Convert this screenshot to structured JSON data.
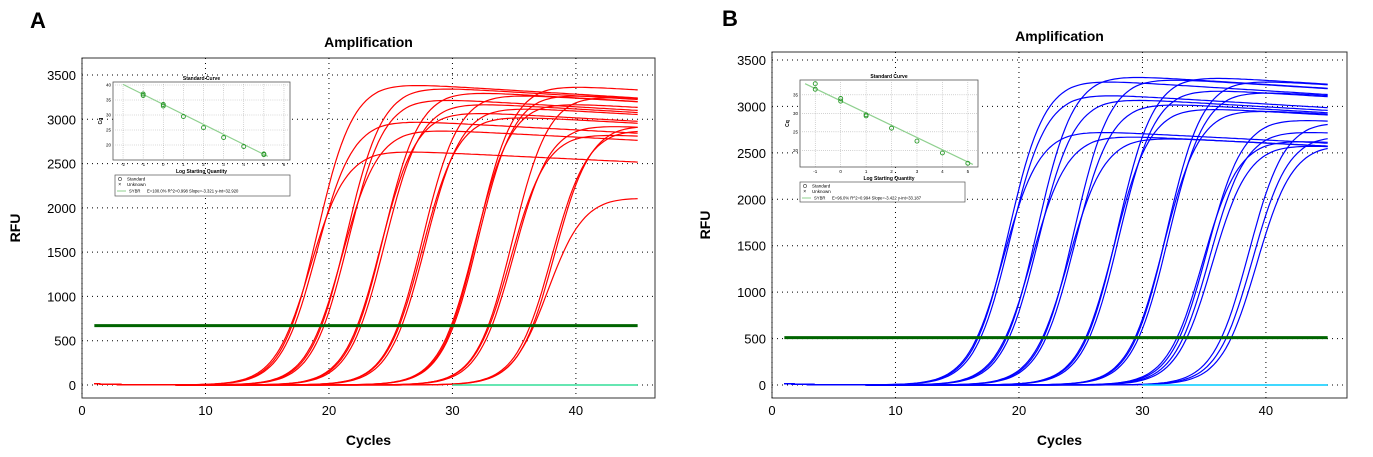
{
  "chart_data": [
    {
      "panel": "A",
      "type": "line",
      "title": "Amplification",
      "xlabel": "Cycles",
      "ylabel": "RFU",
      "xlim": [
        0,
        46
      ],
      "ylim": [
        -100,
        3600
      ],
      "xticks": [
        0,
        10,
        20,
        30,
        40
      ],
      "yticks": [
        0,
        500,
        1000,
        1500,
        2000,
        2500,
        3000,
        3500
      ],
      "grid": "dotted",
      "line_color": "#ff0000",
      "threshold": 670,
      "threshold_color": "#006400",
      "ntc_color": "#33dd99",
      "curves": [
        {
          "cq": 17,
          "plateau": 3420
        },
        {
          "cq": 17.2,
          "plateau": 3000
        },
        {
          "cq": 16.9,
          "plateau": 2660
        },
        {
          "cq": 19.4,
          "plateau": 3380
        },
        {
          "cq": 19.6,
          "plateau": 3250
        },
        {
          "cq": 19.3,
          "plateau": 2900
        },
        {
          "cq": 22.4,
          "plateau": 3330
        },
        {
          "cq": 22.6,
          "plateau": 3200
        },
        {
          "cq": 22.3,
          "plateau": 3100
        },
        {
          "cq": 25.6,
          "plateau": 3300
        },
        {
          "cq": 25.9,
          "plateau": 3150
        },
        {
          "cq": 25.7,
          "plateau": 3050
        },
        {
          "cq": 30,
          "plateau": 3400
        },
        {
          "cq": 30.1,
          "plateau": 3300
        },
        {
          "cq": 29.9,
          "plateau": 3200
        },
        {
          "cq": 32.9,
          "plateau": 3280
        },
        {
          "cq": 33.2,
          "plateau": 2950
        },
        {
          "cq": 33,
          "plateau": 2850
        },
        {
          "cq": 36.5,
          "plateau": 2950
        },
        {
          "cq": 36.3,
          "plateau": 2900
        },
        {
          "cq": 36.6,
          "plateau": 2130
        }
      ],
      "inset": {
        "title": "Standard Curve",
        "xlabel": "Log Starting Quantity",
        "ylabel": "Cq",
        "xlim": [
          -2.5,
          6.3
        ],
        "ylim": [
          15,
          41
        ],
        "xticks": [
          -2,
          -1,
          0,
          1,
          2,
          3,
          4,
          5,
          6
        ],
        "yticks": [
          20,
          25,
          30,
          35,
          40
        ],
        "points": [
          [
            -1,
            36.5
          ],
          [
            -1,
            37
          ],
          [
            0,
            33
          ],
          [
            0,
            33.5
          ],
          [
            1,
            29.5
          ],
          [
            2,
            25.8
          ],
          [
            3,
            22.5
          ],
          [
            4,
            19.5
          ],
          [
            5,
            17
          ],
          [
            5,
            16.8
          ]
        ],
        "fit": [
          [
            -2,
            40.2
          ],
          [
            5.2,
            16.2
          ]
        ],
        "legend": [
          "Standard",
          "Unknown"
        ],
        "fit_label": "SYBR",
        "fit_stats": "E=100.0% R^2=0.998 Slope=-3.321 y-int=32.920"
      }
    },
    {
      "panel": "B",
      "type": "line",
      "title": "Amplification",
      "xlabel": "Cycles",
      "ylabel": "RFU",
      "xlim": [
        0,
        46
      ],
      "ylim": [
        -100,
        3600
      ],
      "xticks": [
        0,
        10,
        20,
        30,
        40
      ],
      "yticks": [
        0,
        500,
        1000,
        1500,
        2000,
        2500,
        3000,
        3500
      ],
      "grid": "dotted",
      "line_color": "#0000ff",
      "threshold": 510,
      "threshold_color": "#006400",
      "ntc_color": "#00ccff",
      "curves": [
        {
          "cq": 16.7,
          "plateau": 3300
        },
        {
          "cq": 16.9,
          "plateau": 3150
        },
        {
          "cq": 16.6,
          "plateau": 2750
        },
        {
          "cq": 19,
          "plateau": 3350
        },
        {
          "cq": 19.2,
          "plateau": 3100
        },
        {
          "cq": 18.9,
          "plateau": 2700
        },
        {
          "cq": 22,
          "plateau": 3320
        },
        {
          "cq": 22.2,
          "plateau": 3050
        },
        {
          "cq": 21.9,
          "plateau": 2680
        },
        {
          "cq": 25.5,
          "plateau": 3340
        },
        {
          "cq": 25.7,
          "plateau": 3200
        },
        {
          "cq": 25.4,
          "plateau": 3000
        },
        {
          "cq": 29.5,
          "plateau": 3300
        },
        {
          "cq": 29.7,
          "plateau": 3180
        },
        {
          "cq": 29.4,
          "plateau": 2980
        },
        {
          "cq": 33,
          "plateau": 2880
        },
        {
          "cq": 33.3,
          "plateau": 2750
        },
        {
          "cq": 32.8,
          "plateau": 2650
        },
        {
          "cq": 33.6,
          "plateau": 2600
        },
        {
          "cq": 36.4,
          "plateau": 2850
        },
        {
          "cq": 36.8,
          "plateau": 2700
        },
        {
          "cq": 37.2,
          "plateau": 2600
        }
      ],
      "inset": {
        "title": "Standard Curve",
        "xlabel": "Log Starting Quantity",
        "ylabel": "Cq",
        "xlim": [
          -1.6,
          5.4
        ],
        "ylim": [
          15.5,
          39
        ],
        "xticks": [
          -1,
          0,
          1,
          2,
          3,
          4,
          5
        ],
        "yticks": [
          20,
          25,
          30,
          35
        ],
        "points": [
          [
            -1,
            36.5
          ],
          [
            -1,
            38
          ],
          [
            0,
            33.3
          ],
          [
            0,
            34
          ],
          [
            1,
            29.6
          ],
          [
            1,
            29.3
          ],
          [
            2,
            26
          ],
          [
            3,
            22.5
          ],
          [
            4,
            19.3
          ],
          [
            5,
            16.5
          ]
        ],
        "fit": [
          [
            -1.4,
            38
          ],
          [
            5.2,
            16.2
          ]
        ],
        "legend": [
          "Standard",
          "Unknown"
        ],
        "fit_label": "SYBR",
        "fit_stats": "E=96.0% R^2=0.994 Slope=-3.422 y-int=33.187"
      }
    }
  ],
  "panel_labels": [
    "A",
    "B"
  ]
}
